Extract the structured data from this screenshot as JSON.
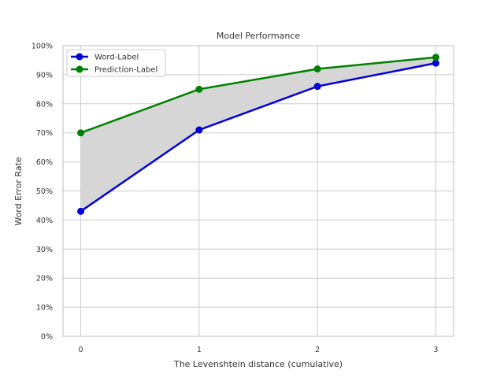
{
  "chart_data": {
    "type": "line",
    "title": "Model Performance",
    "xlabel": "The Levenshtein distance (cumulative)",
    "ylabel": "Word Error Rate",
    "x": [
      0,
      1,
      2,
      3
    ],
    "x_ticks": [
      "0",
      "1",
      "2",
      "3"
    ],
    "y_ticks": [
      "0%",
      "10%",
      "20%",
      "30%",
      "40%",
      "50%",
      "60%",
      "70%",
      "80%",
      "90%",
      "100%"
    ],
    "xlim": [
      -0.15,
      3.15
    ],
    "ylim": [
      0,
      100
    ],
    "grid": true,
    "legend_position": "top-left",
    "fill_between_color": "#d6d6d6",
    "series": [
      {
        "name": "Word-Label",
        "values": [
          43,
          71,
          86,
          94
        ],
        "color": "#0000dd"
      },
      {
        "name": "Prediction-Label",
        "values": [
          70,
          85,
          92,
          96
        ],
        "color": "#008000"
      }
    ]
  }
}
